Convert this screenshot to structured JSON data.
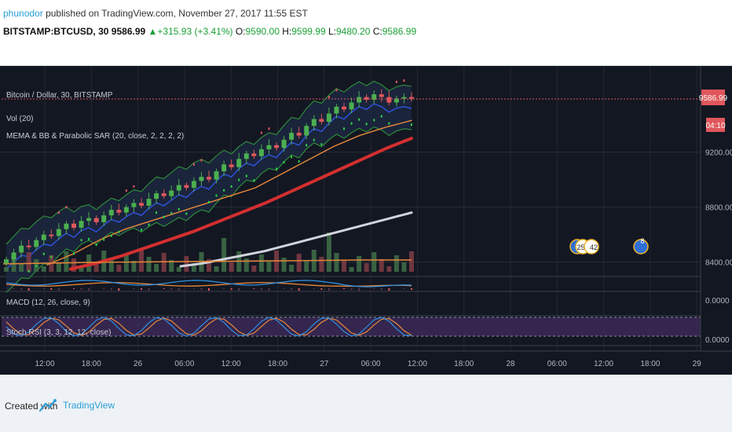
{
  "header": {
    "author": "phunodor",
    "published": "published on TradingView.com, November 27, 2017 11:55 EST",
    "symbol": "BITSTAMP:BTCUSD, 30",
    "last": "9586.99",
    "change": "+315.93 (+3.41%)",
    "o_label": "O:",
    "o_val": "9590.00",
    "h_label": "H:",
    "h_val": "9599.99",
    "l_label": "L:",
    "l_val": "9480.20",
    "c_label": "C:",
    "c_val": "9586.99"
  },
  "legend": {
    "main": "Bitcoin / Dollar, 30, BITSTAMP",
    "vol": "Vol (20)",
    "study": "MEMA & BB & Parabolic SAR (20, close, 2, 2, 2, 2)",
    "macd": "MACD (12, 26, close, 9)",
    "stoch": "Stoch RSI (3, 3, 12, 12, close)"
  },
  "price_axis": {
    "current_price": "9586.99",
    "countdown": "04:10",
    "ticks": [
      "9200.00",
      "8800.00",
      "8400.00"
    ],
    "macd_tick": "0.0000",
    "stoch_tick": "0.0000"
  },
  "time_axis": [
    "12:00",
    "18:00",
    "26",
    "06:00",
    "12:00",
    "18:00",
    "27",
    "06:00",
    "12:00",
    "18:00",
    "28",
    "06:00",
    "12:00",
    "18:00",
    "29"
  ],
  "events": [
    "253",
    "42",
    "8"
  ],
  "footer": {
    "created": "Created with",
    "brand": "TradingView"
  },
  "colors": {
    "background": "#131722",
    "up": "#4caf50",
    "down": "#e0575c",
    "ma_red": "#d32f2f",
    "ma_white": "#d1d4dc",
    "ma_orange": "#e9883a",
    "basis_blue": "#2d4fd0",
    "band_green": "#2e8b3a",
    "sar_green": "#2fd24a"
  },
  "chart_data": {
    "type": "candlestick",
    "symbol": "BITSTAMP:BTCUSD",
    "interval": "30",
    "ylim": [
      8330,
      9780
    ],
    "price_ticks": [
      9200,
      8800,
      8400
    ],
    "last_price": 9586.99,
    "ohlc_last": {
      "open": 9590.0,
      "high": 9599.99,
      "low": 9480.2,
      "close": 9586.99
    },
    "closes": [
      8420,
      8470,
      8520,
      8510,
      8560,
      8600,
      8590,
      8640,
      8680,
      8650,
      8700,
      8720,
      8690,
      8740,
      8780,
      8760,
      8800,
      8830,
      8810,
      8860,
      8900,
      8880,
      8920,
      8960,
      8940,
      8990,
      9020,
      9000,
      9060,
      9110,
      9090,
      9150,
      9190,
      9170,
      9220,
      9250,
      9230,
      9290,
      9340,
      9320,
      9390,
      9440,
      9420,
      9480,
      9530,
      9510,
      9560,
      9600,
      9580,
      9620,
      9600,
      9560,
      9590,
      9600,
      9587
    ],
    "ma_red": [
      8350,
      8390,
      8440,
      8500,
      8560,
      8620,
      8690,
      8760,
      8830,
      8910,
      8990,
      9070,
      9150,
      9230,
      9300
    ],
    "ma_white": [
      8370,
      8390,
      8420,
      8450,
      8480,
      8520,
      8560,
      8600,
      8640,
      8680,
      8720,
      8760
    ],
    "ma_orange": [
      8380,
      8460,
      8560,
      8640,
      8700,
      8760,
      8820,
      8880,
      8940,
      9040,
      9140,
      9240,
      9320,
      9380,
      9430
    ]
  }
}
